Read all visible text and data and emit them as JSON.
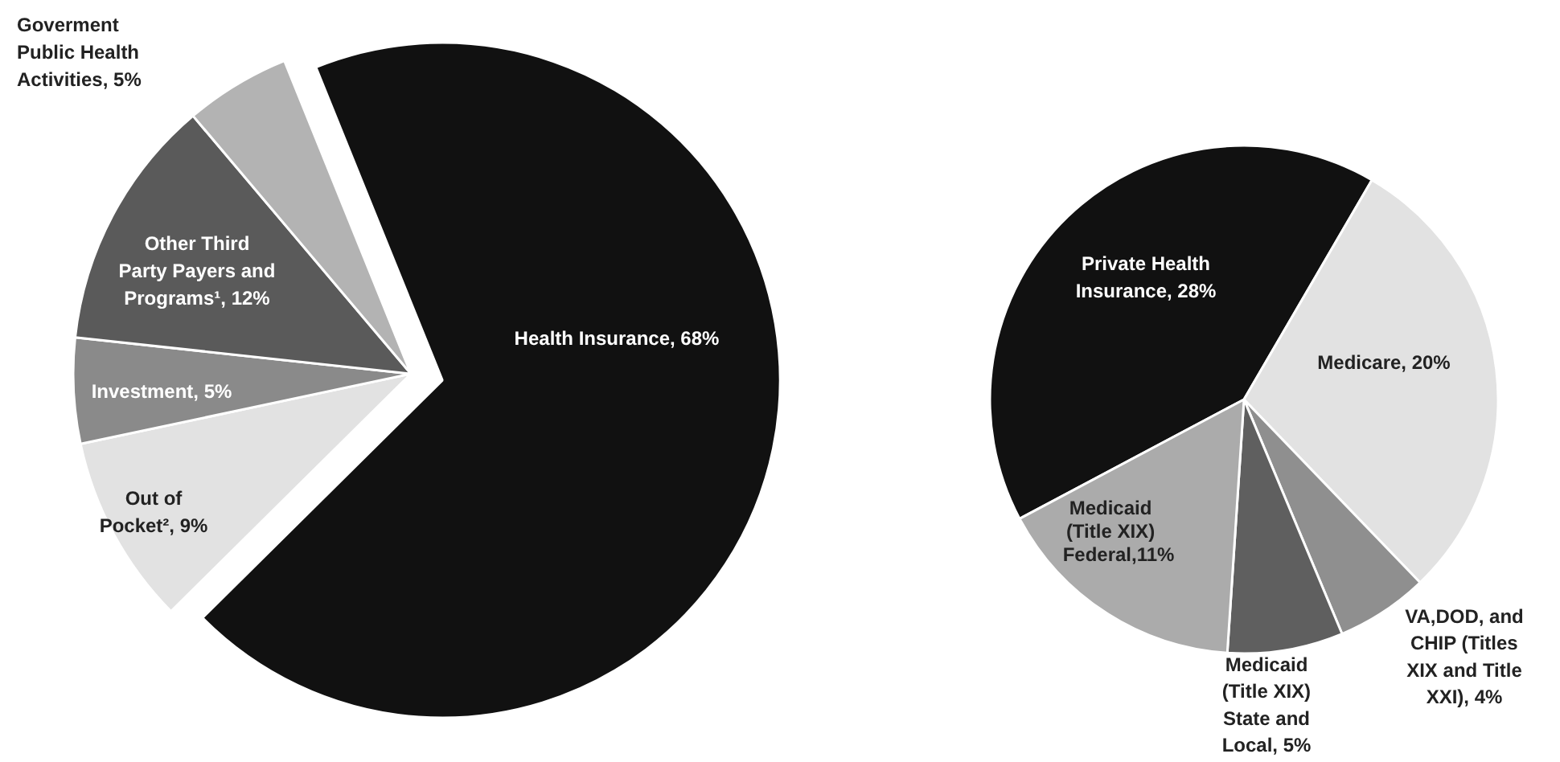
{
  "chart_data": [
    {
      "type": "pie",
      "categories": [
        "Health Insurance",
        "Out of Pocket²",
        "Investment",
        "Other Third Party Payers and Programs¹",
        "Goverment Public Health Activities"
      ],
      "values": [
        68,
        9,
        5,
        12,
        5
      ],
      "colors": [
        "#111111",
        "#e2e2e2",
        "#8a8a8a",
        "#5a5a5a",
        "#b3b3b3"
      ],
      "value_labels": [
        "68%",
        "9%",
        "5%",
        "12%",
        "5%"
      ]
    },
    {
      "type": "pie",
      "categories": [
        "Private Health Insurance",
        "Medicare",
        "VA,DOD, and CHIP (Titles XIX and Title XXI)",
        "Medicaid (Title XIX) State and Local",
        "Medicaid (Title XIX) Federal"
      ],
      "values": [
        28,
        20,
        4,
        5,
        11
      ],
      "colors": [
        "#111111",
        "#e2e2e2",
        "#8f8f8f",
        "#5f5f5f",
        "#ababab"
      ],
      "value_labels": [
        "28%",
        "20%",
        "4%",
        "5%",
        ",11%"
      ]
    }
  ]
}
